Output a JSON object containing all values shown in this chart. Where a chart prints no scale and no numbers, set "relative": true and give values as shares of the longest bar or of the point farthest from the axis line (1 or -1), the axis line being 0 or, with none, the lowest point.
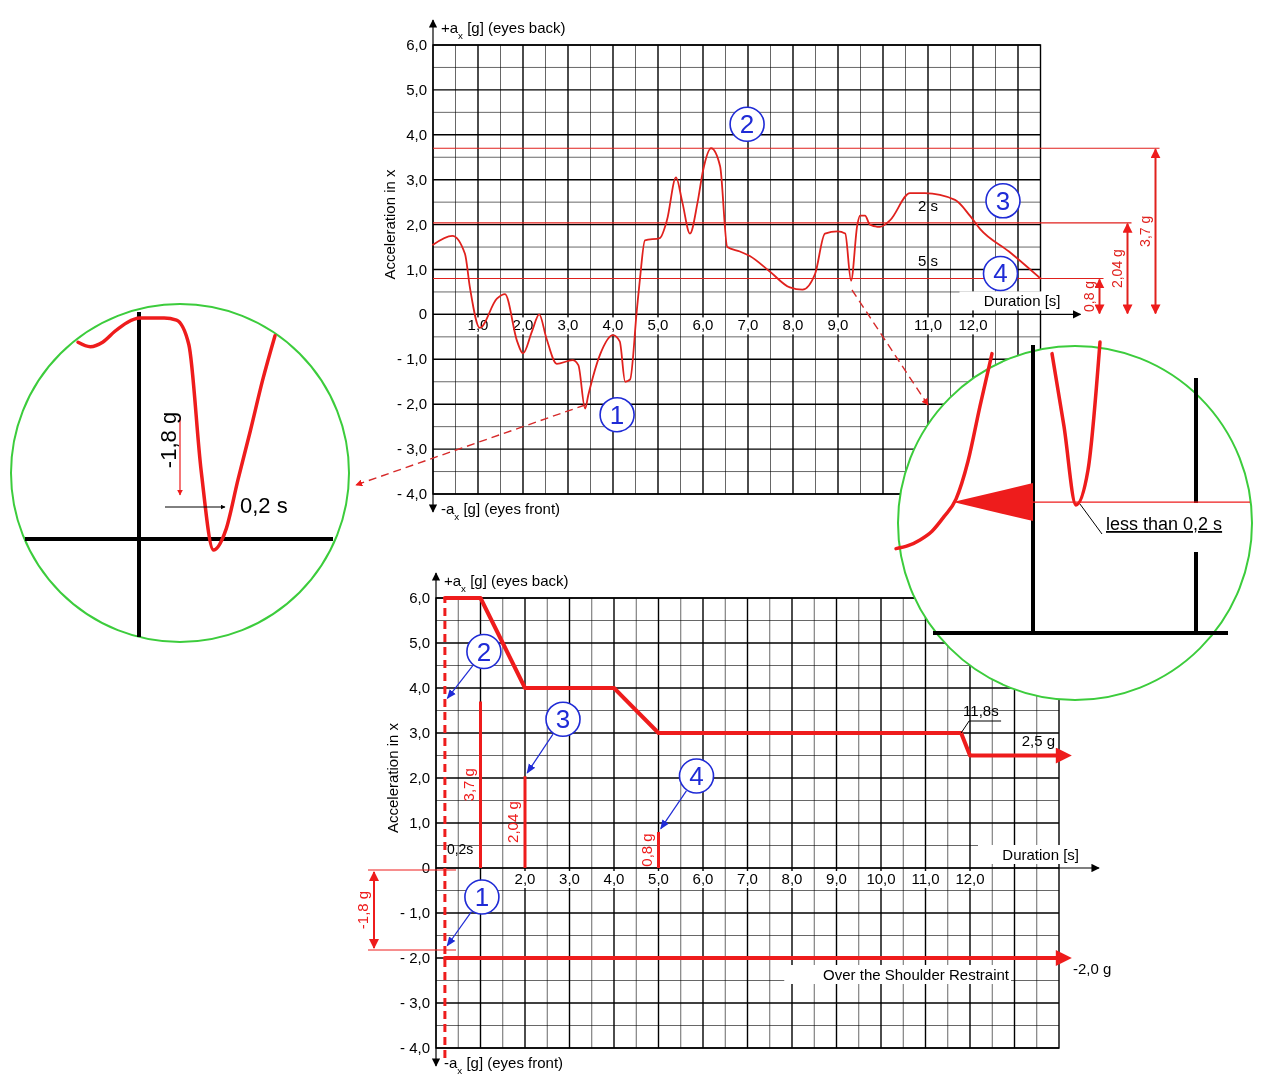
{
  "chart_data": [
    {
      "type": "line",
      "xlabel": "Duration [s]",
      "ylabel": "Acceleration in x",
      "grid": true,
      "xlim": [
        0,
        13.5
      ],
      "ylim": [
        -4,
        6
      ],
      "xticks": [
        {
          "value": 0.5,
          "label": null
        },
        {
          "value": 1,
          "label": "1,0"
        },
        {
          "value": 1.5,
          "label": null
        },
        {
          "value": 2,
          "label": "2,0"
        },
        {
          "value": 2.5,
          "label": null
        },
        {
          "value": 3,
          "label": "3,0"
        },
        {
          "value": 3.5,
          "label": null
        },
        {
          "value": 4,
          "label": "4,0"
        },
        {
          "value": 4.5,
          "label": null
        },
        {
          "value": 5,
          "label": "5,0"
        },
        {
          "value": 5.5,
          "label": null
        },
        {
          "value": 6,
          "label": "6,0"
        },
        {
          "value": 6.5,
          "label": null
        },
        {
          "value": 7,
          "label": "7,0"
        },
        {
          "value": 7.5,
          "label": null
        },
        {
          "value": 8,
          "label": "8,0"
        },
        {
          "value": 8.5,
          "label": null
        },
        {
          "value": 9,
          "label": "9,0"
        },
        {
          "value": 9.5,
          "label": null
        },
        {
          "value": 10,
          "label": null
        },
        {
          "value": 10.5,
          "label": null
        },
        {
          "value": 11,
          "label": "11,0"
        },
        {
          "value": 11.5,
          "label": null
        },
        {
          "value": 12,
          "label": "12,0"
        },
        {
          "value": 12.5,
          "label": null
        },
        {
          "value": 13,
          "label": null
        },
        {
          "value": 13.5,
          "label": null
        }
      ],
      "yticks": [
        {
          "value": -4,
          "label": "- 4,0"
        },
        {
          "value": -3.5,
          "label": null
        },
        {
          "value": -3,
          "label": "- 3,0"
        },
        {
          "value": -2.5,
          "label": null
        },
        {
          "value": -2,
          "label": "- 2,0"
        },
        {
          "value": -1.5,
          "label": null
        },
        {
          "value": -1,
          "label": "- 1,0"
        },
        {
          "value": -0.5,
          "label": null
        },
        {
          "value": 0,
          "label": "0"
        },
        {
          "value": 0.5,
          "label": null
        },
        {
          "value": 1,
          "label": "1,0"
        },
        {
          "value": 1.5,
          "label": null
        },
        {
          "value": 2,
          "label": "2,0"
        },
        {
          "value": 2.5,
          "label": null
        },
        {
          "value": 3,
          "label": "3,0"
        },
        {
          "value": 3.5,
          "label": null
        },
        {
          "value": 4,
          "label": "4,0"
        },
        {
          "value": 4.5,
          "label": null
        },
        {
          "value": 5,
          "label": "5,0"
        },
        {
          "value": 5.5,
          "label": null
        },
        {
          "value": 6,
          "label": "6,0"
        }
      ],
      "series": [
        {
          "color": "#e0211d",
          "x": [
            0,
            0.43,
            0.71,
            0.82,
            1.04,
            1.42,
            1.6,
            1.87,
            2.0,
            2.2,
            2.36,
            2.52,
            2.75,
            3.1,
            3.23,
            3.38,
            3.45,
            3.71,
            4.0,
            4.15,
            4.27,
            4.38,
            4.53,
            4.6,
            4.71,
            5.04,
            5.2,
            5.4,
            5.54,
            5.71,
            5.88,
            6.0,
            6.18,
            6.38,
            6.54,
            6.82,
            7.04,
            7.49,
            7.93,
            8.21,
            8.49,
            8.71,
            8.99,
            9.16,
            9.29,
            9.43,
            9.49,
            9.6,
            9.71,
            9.93,
            10.16,
            10.6,
            10.93,
            11.6,
            11.93,
            12.16,
            12.8,
            13.5
          ],
          "values": [
            1.55,
            1.75,
            1.35,
            0.6,
            -0.3,
            0.35,
            0.45,
            -0.6,
            -0.87,
            -0.38,
            0,
            -0.53,
            -1.1,
            -1.02,
            -1.13,
            -2.1,
            -1.8,
            -0.9,
            -0.46,
            -0.6,
            -1.5,
            -1.45,
            0.1,
            0.8,
            1.65,
            1.7,
            2.1,
            3.05,
            2.5,
            1.8,
            2.5,
            3.2,
            3.7,
            3.3,
            1.5,
            1.4,
            1.3,
            0.95,
            0.6,
            0.55,
            0.9,
            1.8,
            1.85,
            1.8,
            0.75,
            2.0,
            2.2,
            2.2,
            2.0,
            1.95,
            2.1,
            2.7,
            2.7,
            2.55,
            2.2,
            1.9,
            1.4,
            0.8
          ]
        }
      ],
      "ref_lines": [
        {
          "axis": "y",
          "value": 3.7,
          "label": "3,7 g",
          "color": "#e0211d"
        },
        {
          "axis": "y",
          "value": 2.04,
          "label": "2,04 g",
          "color": "#e0211d"
        },
        {
          "axis": "y",
          "value": 0.8,
          "label": "0,8 g",
          "color": "#e0211d"
        }
      ],
      "annotations": [
        "+a$_{x}$ [g] (eyes back)",
        "-a$_{x}$ [g] (eyes front)",
        {
          "text": "1",
          "x": 3.38,
          "y": -2.1
        },
        {
          "text": "2",
          "x": 6.18,
          "y": 3.7
        },
        {
          "text": "3",
          "x": 12,
          "y": 2.04
        },
        {
          "text": "4",
          "x": 13.5,
          "y": 0.8
        },
        {
          "text": "2 s",
          "x": 11,
          "y": 2.04
        },
        {
          "text": "5 s",
          "x": 11,
          "y": 0.8
        }
      ]
    },
    {
      "type": "line",
      "xlabel": "Duration [s]",
      "ylabel": "Acceleration in x",
      "grid": true,
      "xlim": [
        0,
        14
      ],
      "ylim": [
        -4,
        6
      ],
      "xticks": [
        {
          "value": 0.5,
          "label": null
        },
        {
          "value": 1,
          "label": null
        },
        {
          "value": 1.5,
          "label": null
        },
        {
          "value": 2,
          "label": "2,0"
        },
        {
          "value": 2.5,
          "label": null
        },
        {
          "value": 3,
          "label": "3,0"
        },
        {
          "value": 3.5,
          "label": null
        },
        {
          "value": 4,
          "label": "4,0"
        },
        {
          "value": 4.5,
          "label": null
        },
        {
          "value": 5,
          "label": "5,0"
        },
        {
          "value": 5.5,
          "label": null
        },
        {
          "value": 6,
          "label": "6,0"
        },
        {
          "value": 6.5,
          "label": null
        },
        {
          "value": 7,
          "label": "7,0"
        },
        {
          "value": 7.5,
          "label": null
        },
        {
          "value": 8,
          "label": "8,0"
        },
        {
          "value": 8.5,
          "label": null
        },
        {
          "value": 9,
          "label": "9,0"
        },
        {
          "value": 9.5,
          "label": null
        },
        {
          "value": 10,
          "label": "10,0"
        },
        {
          "value": 10.5,
          "label": null
        },
        {
          "value": 11,
          "label": "11,0"
        },
        {
          "value": 11.5,
          "label": null
        },
        {
          "value": 12,
          "label": "12,0"
        },
        {
          "value": 12.5,
          "label": null
        },
        {
          "value": 13,
          "label": null
        },
        {
          "value": 13.5,
          "label": null
        }
      ],
      "yticks": [
        {
          "value": -4,
          "label": "- 4,0"
        },
        {
          "value": -3.5,
          "label": null
        },
        {
          "value": -3,
          "label": "- 3,0"
        },
        {
          "value": -2.5,
          "label": null
        },
        {
          "value": -2,
          "label": "- 2,0"
        },
        {
          "value": -1.5,
          "label": null
        },
        {
          "value": -1,
          "label": "- 1,0"
        },
        {
          "value": -0.5,
          "label": null
        },
        {
          "value": 0,
          "label": "0"
        },
        {
          "value": 0.5,
          "label": null
        },
        {
          "value": 1,
          "label": "1,0"
        },
        {
          "value": 1.5,
          "label": null
        },
        {
          "value": 2,
          "label": "2,0"
        },
        {
          "value": 2.5,
          "label": null
        },
        {
          "value": 3,
          "label": "3,0"
        },
        {
          "value": 3.5,
          "label": null
        },
        {
          "value": 4,
          "label": "4,0"
        },
        {
          "value": 4.5,
          "label": null
        },
        {
          "value": 5,
          "label": "5,0"
        },
        {
          "value": 5.5,
          "label": null
        },
        {
          "value": 6,
          "label": "6,0"
        }
      ],
      "series": [
        {
          "color": "#ee1c1c",
          "x": [
            0.2,
            1,
            2,
            4,
            5,
            11.8,
            12,
            14
          ],
          "values": [
            6,
            6,
            4,
            4,
            3,
            3,
            2.5,
            2.5
          ]
        },
        {
          "type": "bar",
          "color": "#ee1c1c",
          "x": [
            1,
            2,
            5
          ],
          "values": [
            3.7,
            2.04,
            0.8
          ],
          "value_labels": [
            "3,7 g",
            "2,04 g",
            "0,8 g"
          ]
        },
        {
          "name": "Over the Shoulder Restraint",
          "color": "#ee1c1c",
          "x": [
            0.2,
            14
          ],
          "values": [
            -2,
            -2
          ]
        }
      ],
      "ref_lines": [
        {
          "axis": "x",
          "value": 0.2,
          "label": "0,2s",
          "color": "#ee1c1c",
          "line_style": "dashed"
        }
      ],
      "annotations": [
        "+a$_{x}$ [g] (eyes back)",
        "-a$_{x}$ [g] (eyes front)",
        {
          "text": "1",
          "x": 0.2,
          "y": -1.8
        },
        {
          "text": "2",
          "x": 0.2,
          "y": 3.7
        },
        {
          "text": "3",
          "x": 2,
          "y": 2.04
        },
        {
          "text": "4",
          "x": 5,
          "y": 0.8
        },
        "-1,8 g",
        {
          "text": "11,8s",
          "x": 11.8,
          "y": 3
        },
        {
          "text": "2,5 g",
          "x": 14,
          "y": 2.5
        },
        {
          "text": "-2,0 g",
          "x": 14,
          "y": -2
        }
      ]
    },
    {
      "type": "line",
      "relative": true,
      "categories": [
        null,
        null,
        null,
        null,
        null,
        null,
        null,
        null,
        null,
        null,
        null,
        null,
        null,
        null,
        null,
        null,
        null
      ],
      "series": [
        {
          "color": "#ee1c1c",
          "values": [
            0.89,
            0.87,
            0.89,
            0.94,
            0.98,
            1.0,
            1.0,
            1.0,
            0.99,
            0.88,
            0.31,
            -0.05,
            0.04,
            0.27,
            0.49,
            0.72,
            0.92
          ]
        }
      ],
      "annotations": [
        "-1,8 g",
        "0,2 s"
      ]
    },
    {
      "type": "line",
      "relative": true,
      "categories": [
        null,
        null,
        null,
        null,
        null,
        null,
        null,
        null,
        null,
        null,
        null,
        null,
        null,
        null,
        null,
        null,
        null,
        null
      ],
      "series": [
        {
          "color": "#ee1c1c",
          "values": [
            0.29,
            0.3,
            0.32,
            0.35,
            0.4,
            0.46,
            0.59,
            0.78,
            0.96,
            null,
            null,
            null,
            null,
            null,
            null,
            null,
            null,
            null
          ]
        },
        {
          "color": "#ee1c1c",
          "values": [
            null,
            null,
            null,
            null,
            null,
            null,
            null,
            null,
            null,
            null,
            null,
            null,
            null,
            0.96,
            0.71,
            0.44,
            0.56,
            1.0
          ]
        }
      ],
      "ref_lines": [
        {
          "axis": "y",
          "value": 0.45,
          "color": "#ee1c1c"
        }
      ],
      "annotations": [
        {
          "text": "less than 0,2 s",
          "y": 0.45
        }
      ]
    }
  ]
}
